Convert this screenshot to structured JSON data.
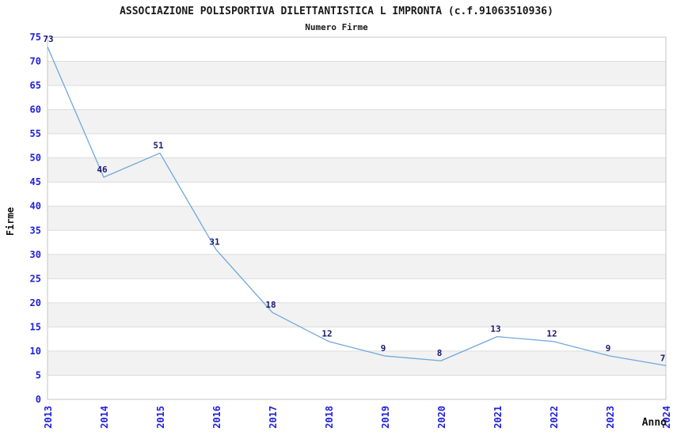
{
  "chart_data": {
    "type": "line",
    "title": "ASSOCIAZIONE POLISPORTIVA DILETTANTISTICA L IMPRONTA (c.f.91063510936)",
    "subtitle": "Numero Firme",
    "xlabel": "Anno",
    "ylabel": "Firme",
    "categories": [
      "2013",
      "2014",
      "2015",
      "2016",
      "2017",
      "2018",
      "2019",
      "2020",
      "2021",
      "2022",
      "2023",
      "2024"
    ],
    "values": [
      73,
      46,
      51,
      31,
      18,
      12,
      9,
      8,
      13,
      12,
      9,
      7
    ],
    "ylim": [
      0,
      75
    ],
    "ytick_step": 5,
    "grid": true,
    "legend": "none",
    "colors": {
      "line": "#6fa8dc",
      "tick_label": "#2020dd",
      "value_label": "#191970",
      "band": "#f2f2f2",
      "gridline": "#dcdcdc",
      "plot_border": "#c4c4c4",
      "background": "#ffffff"
    }
  }
}
